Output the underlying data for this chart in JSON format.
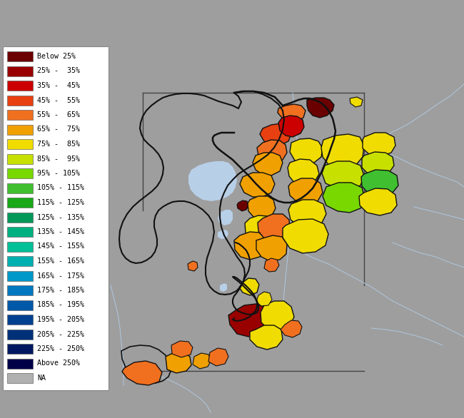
{
  "background_color": "#9e9e9e",
  "water_color": "#b8cfe8",
  "river_color": "#b0c8e0",
  "border_color_heavy": "#111111",
  "border_color_light": "#555555",
  "legend_labels": [
    "Below 25%",
    "25% -  35%",
    "35% -  45%",
    "45% -  55%",
    "55% -  65%",
    "65% -  75%",
    "75% -  85%",
    "85% -  95%",
    "95% - 105%",
    "105% - 115%",
    "115% - 125%",
    "125% - 135%",
    "135% - 145%",
    "145% - 155%",
    "155% - 165%",
    "165% - 175%",
    "175% - 185%",
    "185% - 195%",
    "195% - 205%",
    "205% - 225%",
    "225% - 250%",
    "Above 250%",
    "NA"
  ],
  "legend_colors": [
    "#6b0000",
    "#990000",
    "#cc0000",
    "#e84010",
    "#f07020",
    "#f0a000",
    "#f0dc00",
    "#c8e000",
    "#78d800",
    "#40c030",
    "#18a818",
    "#009858",
    "#00b080",
    "#00c098",
    "#00b0b0",
    "#0098c8",
    "#0078c0",
    "#0058a8",
    "#004090",
    "#003078",
    "#001860",
    "#000048",
    "#b0b0b0"
  ],
  "fig_width": 6.5,
  "fig_height": 5.86,
  "dpi": 100
}
